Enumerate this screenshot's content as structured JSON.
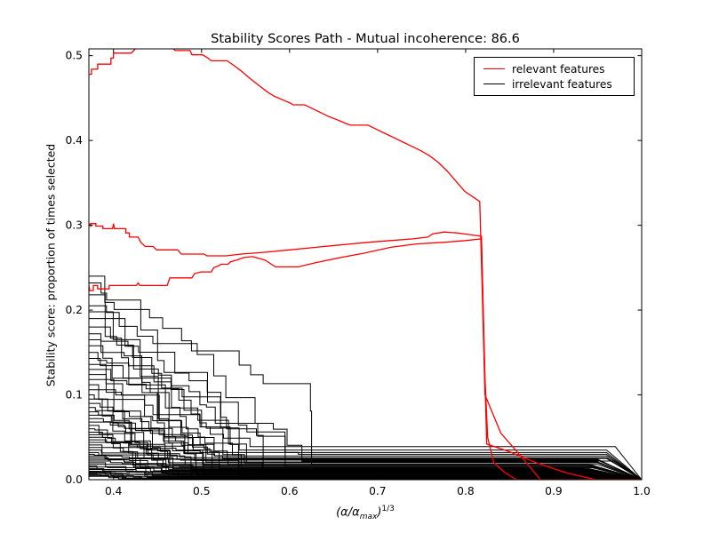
{
  "title": "Stability Scores Path - Mutual incoherence: 86.6",
  "legend": {
    "items": [
      {
        "label": "relevant features",
        "color": "#ff0000"
      },
      {
        "label": "irrelevant features",
        "color": "#000000"
      }
    ],
    "position": "upper right"
  },
  "axes": {
    "ylabel": "Stability score: proportion of times selected",
    "xlabel_pre": "(α/α",
    "xlabel_sub": "max",
    "xlabel_close": ")",
    "xlabel_sup": "1/3",
    "x_ticks": [
      "0.4",
      "0.5",
      "0.6",
      "0.7",
      "0.8",
      "0.9",
      "1.0"
    ],
    "x_tick_values": [
      0.4,
      0.5,
      0.6,
      0.7,
      0.8,
      0.9,
      1.0
    ],
    "y_ticks": [
      "0.0",
      "0.1",
      "0.2",
      "0.3",
      "0.4",
      "0.5"
    ],
    "y_tick_values": [
      0.0,
      0.1,
      0.2,
      0.3,
      0.4,
      0.5
    ]
  },
  "colors": {
    "relevant": "#ff0000",
    "irrelevant": "#000000",
    "background": "#ffffff",
    "spine": "#000000"
  },
  "chart_data": {
    "type": "line",
    "title": "Stability Scores Path - Mutual incoherence: 86.6",
    "xlabel": "(α/α_max)^(1/3)",
    "ylabel": "Stability score: proportion of times selected",
    "xlim": [
      0.372,
      1.0
    ],
    "ylim": [
      0,
      0.508
    ],
    "grid": false,
    "legend_position": "upper right",
    "series": [
      {
        "name": "relevant feature 1",
        "color": "#ff0000",
        "points": [
          [
            0.372,
            0.478
          ],
          [
            0.375,
            0.478
          ],
          [
            0.375,
            0.484
          ],
          [
            0.382,
            0.484
          ],
          [
            0.382,
            0.49
          ],
          [
            0.397,
            0.49
          ],
          [
            0.397,
            0.497
          ],
          [
            0.4,
            0.497
          ],
          [
            0.4,
            0.503
          ],
          [
            0.42,
            0.503
          ],
          [
            0.423,
            0.506
          ],
          [
            0.428,
            0.512
          ],
          [
            0.464,
            0.512
          ],
          [
            0.47,
            0.506
          ],
          [
            0.487,
            0.506
          ],
          [
            0.489,
            0.501
          ],
          [
            0.501,
            0.501
          ],
          [
            0.506,
            0.498
          ],
          [
            0.511,
            0.494
          ],
          [
            0.529,
            0.494
          ],
          [
            0.536,
            0.489
          ],
          [
            0.545,
            0.482
          ],
          [
            0.555,
            0.473
          ],
          [
            0.565,
            0.465
          ],
          [
            0.575,
            0.457
          ],
          [
            0.583,
            0.452
          ],
          [
            0.592,
            0.448
          ],
          [
            0.601,
            0.444
          ],
          [
            0.604,
            0.442
          ],
          [
            0.617,
            0.442
          ],
          [
            0.625,
            0.438
          ],
          [
            0.635,
            0.433
          ],
          [
            0.645,
            0.428
          ],
          [
            0.655,
            0.424
          ],
          [
            0.664,
            0.42
          ],
          [
            0.669,
            0.418
          ],
          [
            0.689,
            0.418
          ],
          [
            0.699,
            0.413
          ],
          [
            0.709,
            0.408
          ],
          [
            0.719,
            0.403
          ],
          [
            0.729,
            0.398
          ],
          [
            0.739,
            0.393
          ],
          [
            0.749,
            0.388
          ],
          [
            0.759,
            0.382
          ],
          [
            0.769,
            0.374
          ],
          [
            0.779,
            0.364
          ],
          [
            0.789,
            0.352
          ],
          [
            0.799,
            0.34
          ],
          [
            0.809,
            0.333
          ],
          [
            0.816,
            0.328
          ],
          [
            0.819,
            0.22
          ],
          [
            0.822,
            0.1
          ],
          [
            0.84,
            0.055
          ],
          [
            0.865,
            0.025
          ],
          [
            0.885,
            0.0
          ],
          [
            1.0,
            0.0
          ]
        ]
      },
      {
        "name": "relevant feature 2",
        "color": "#ff0000",
        "points": [
          [
            0.372,
            0.302
          ],
          [
            0.374,
            0.299
          ],
          [
            0.374,
            0.302
          ],
          [
            0.38,
            0.302
          ],
          [
            0.38,
            0.299
          ],
          [
            0.388,
            0.299
          ],
          [
            0.388,
            0.296
          ],
          [
            0.399,
            0.296
          ],
          [
            0.4,
            0.302
          ],
          [
            0.401,
            0.296
          ],
          [
            0.414,
            0.296
          ],
          [
            0.414,
            0.291
          ],
          [
            0.418,
            0.291
          ],
          [
            0.418,
            0.286
          ],
          [
            0.428,
            0.286
          ],
          [
            0.431,
            0.28
          ],
          [
            0.436,
            0.275
          ],
          [
            0.445,
            0.275
          ],
          [
            0.449,
            0.271
          ],
          [
            0.473,
            0.271
          ],
          [
            0.477,
            0.266
          ],
          [
            0.503,
            0.266
          ],
          [
            0.506,
            0.264
          ],
          [
            0.528,
            0.264
          ],
          [
            0.545,
            0.266
          ],
          [
            0.57,
            0.268
          ],
          [
            0.6,
            0.271
          ],
          [
            0.63,
            0.274
          ],
          [
            0.66,
            0.277
          ],
          [
            0.69,
            0.28
          ],
          [
            0.715,
            0.282
          ],
          [
            0.74,
            0.284
          ],
          [
            0.757,
            0.286
          ],
          [
            0.763,
            0.29
          ],
          [
            0.776,
            0.292
          ],
          [
            0.79,
            0.291
          ],
          [
            0.805,
            0.289
          ],
          [
            0.818,
            0.287
          ],
          [
            0.821,
            0.15
          ],
          [
            0.824,
            0.042
          ],
          [
            0.85,
            0.033
          ],
          [
            0.88,
            0.02
          ],
          [
            0.915,
            0.008
          ],
          [
            0.948,
            0.0
          ],
          [
            1.0,
            0.0
          ]
        ]
      },
      {
        "name": "relevant feature 3",
        "color": "#ff0000",
        "points": [
          [
            0.372,
            0.229
          ],
          [
            0.373,
            0.223
          ],
          [
            0.377,
            0.223
          ],
          [
            0.377,
            0.229
          ],
          [
            0.382,
            0.229
          ],
          [
            0.382,
            0.225
          ],
          [
            0.395,
            0.225
          ],
          [
            0.395,
            0.229
          ],
          [
            0.426,
            0.229
          ],
          [
            0.428,
            0.232
          ],
          [
            0.43,
            0.229
          ],
          [
            0.461,
            0.229
          ],
          [
            0.464,
            0.238
          ],
          [
            0.489,
            0.238
          ],
          [
            0.492,
            0.243
          ],
          [
            0.499,
            0.245
          ],
          [
            0.511,
            0.245
          ],
          [
            0.514,
            0.25
          ],
          [
            0.519,
            0.252
          ],
          [
            0.522,
            0.254
          ],
          [
            0.53,
            0.254
          ],
          [
            0.533,
            0.257
          ],
          [
            0.54,
            0.259
          ],
          [
            0.548,
            0.262
          ],
          [
            0.558,
            0.263
          ],
          [
            0.572,
            0.259
          ],
          [
            0.584,
            0.251
          ],
          [
            0.61,
            0.251
          ],
          [
            0.63,
            0.256
          ],
          [
            0.658,
            0.262
          ],
          [
            0.684,
            0.267
          ],
          [
            0.715,
            0.274
          ],
          [
            0.744,
            0.278
          ],
          [
            0.776,
            0.28
          ],
          [
            0.8,
            0.282
          ],
          [
            0.818,
            0.284
          ],
          [
            0.822,
            0.12
          ],
          [
            0.825,
            0.05
          ],
          [
            0.832,
            0.02
          ],
          [
            0.845,
            0.008
          ],
          [
            0.858,
            0.0
          ],
          [
            1.0,
            0.0
          ]
        ]
      }
    ],
    "irrelevant": {
      "color": "#000000",
      "count": 55,
      "noise_seed": 20,
      "x_start": 0.372,
      "params_format": [
        "start_y",
        "x_reach_floor",
        "floor_y",
        "taper_start_x"
      ],
      "params": [
        [
          0.24,
          0.625,
          0.018,
          0.95
        ],
        [
          0.232,
          0.61,
          0.03,
          0.96
        ],
        [
          0.218,
          0.6,
          0.012,
          0.94
        ],
        [
          0.205,
          0.615,
          0.022,
          0.97
        ],
        [
          0.198,
          0.59,
          0.008,
          0.93
        ],
        [
          0.19,
          0.58,
          0.035,
          0.96
        ],
        [
          0.18,
          0.595,
          0.015,
          0.95
        ],
        [
          0.172,
          0.57,
          0.005,
          0.92
        ],
        [
          0.165,
          0.585,
          0.025,
          0.96
        ],
        [
          0.158,
          0.56,
          0.01,
          0.94
        ],
        [
          0.15,
          0.575,
          0.02,
          0.95
        ],
        [
          0.143,
          0.555,
          0.039,
          0.97
        ],
        [
          0.136,
          0.545,
          0.007,
          0.93
        ],
        [
          0.13,
          0.56,
          0.014,
          0.95
        ],
        [
          0.124,
          0.54,
          0.028,
          0.96
        ],
        [
          0.118,
          0.55,
          0.004,
          0.92
        ],
        [
          0.112,
          0.53,
          0.018,
          0.94
        ],
        [
          0.106,
          0.542,
          0.01,
          0.95
        ],
        [
          0.1,
          0.525,
          0.032,
          0.96
        ],
        [
          0.095,
          0.535,
          0.006,
          0.93
        ],
        [
          0.09,
          0.52,
          0.016,
          0.94
        ],
        [
          0.085,
          0.528,
          0.024,
          0.95
        ],
        [
          0.08,
          0.512,
          0.009,
          0.93
        ],
        [
          0.076,
          0.52,
          0.013,
          0.94
        ],
        [
          0.072,
          0.505,
          0.021,
          0.95
        ],
        [
          0.068,
          0.515,
          0.003,
          0.91
        ],
        [
          0.064,
          0.5,
          0.011,
          0.94
        ],
        [
          0.06,
          0.508,
          0.026,
          0.96
        ],
        [
          0.056,
          0.495,
          0.007,
          0.92
        ],
        [
          0.053,
          0.502,
          0.017,
          0.94
        ],
        [
          0.05,
          0.488,
          0.012,
          0.93
        ],
        [
          0.047,
          0.495,
          0.005,
          0.92
        ],
        [
          0.044,
          0.482,
          0.02,
          0.95
        ],
        [
          0.041,
          0.488,
          0.009,
          0.93
        ],
        [
          0.038,
          0.475,
          0.015,
          0.94
        ],
        [
          0.035,
          0.48,
          0.003,
          0.9
        ],
        [
          0.032,
          0.47,
          0.011,
          0.93
        ],
        [
          0.03,
          0.476,
          0.023,
          0.95
        ],
        [
          0.028,
          0.462,
          0.006,
          0.92
        ],
        [
          0.026,
          0.468,
          0.013,
          0.93
        ],
        [
          0.024,
          0.455,
          0.008,
          0.92
        ],
        [
          0.022,
          0.46,
          0.018,
          0.94
        ],
        [
          0.02,
          0.45,
          0.004,
          0.91
        ],
        [
          0.018,
          0.455,
          0.01,
          0.93
        ],
        [
          0.016,
          0.445,
          0.002,
          0.9
        ],
        [
          0.015,
          0.45,
          0.014,
          0.93
        ],
        [
          0.013,
          0.44,
          0.007,
          0.92
        ],
        [
          0.012,
          0.444,
          0.005,
          0.91
        ],
        [
          0.01,
          0.435,
          0.009,
          0.92
        ],
        [
          0.009,
          0.438,
          0.003,
          0.9
        ],
        [
          0.008,
          0.43,
          0.006,
          0.91
        ],
        [
          0.007,
          0.432,
          0.002,
          0.9
        ],
        [
          0.006,
          0.425,
          0.004,
          0.9
        ],
        [
          0.005,
          0.428,
          0.001,
          0.89
        ],
        [
          0.004,
          0.42,
          0.002,
          0.9
        ]
      ]
    }
  }
}
